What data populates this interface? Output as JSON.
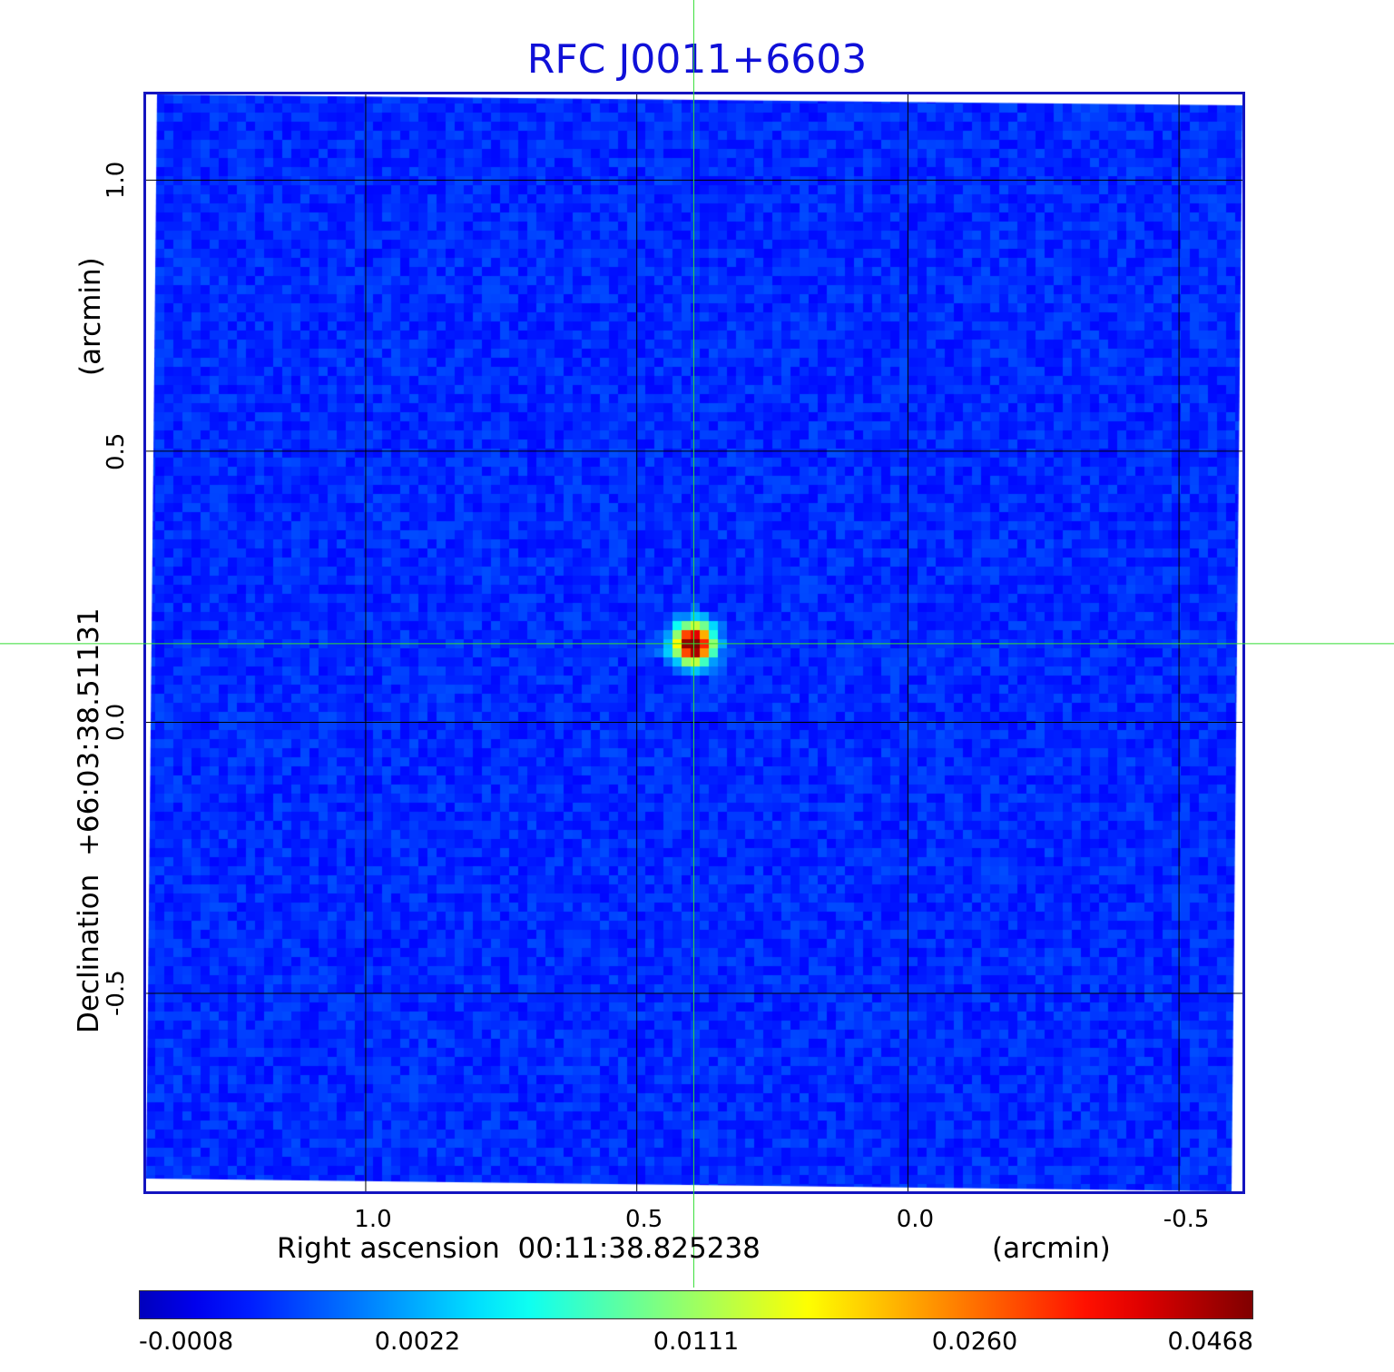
{
  "title": "RFC J0011+6603",
  "x_axis": {
    "label": "Right ascension  00:11:38.825238",
    "unit": "(arcmin)",
    "ticks": [
      "1.0",
      "0.5",
      "0.0",
      "-0.5"
    ],
    "tick_values": [
      1.0,
      0.5,
      0.0,
      -0.5
    ],
    "range": [
      1.405,
      -0.617
    ]
  },
  "y_axis": {
    "label": "Declination  +66:03:38.51131",
    "unit": "(arcmin)",
    "ticks": [
      "1.0",
      "0.5",
      "0.0",
      "-0.5"
    ],
    "tick_values": [
      1.0,
      0.5,
      0.0,
      -0.5
    ],
    "range": [
      -0.865,
      1.158
    ]
  },
  "crosshair": {
    "color": "#33dd33",
    "x_arcmin": 0.395,
    "y_arcmin": 0.145
  },
  "source": {
    "x_arcmin": 0.395,
    "y_arcmin": 0.145
  },
  "colorbar": {
    "colormap": "jet",
    "labels": [
      "-0.0008",
      "0.0022",
      "0.0111",
      "0.0260",
      "0.0468"
    ],
    "values": [
      -0.0008,
      0.0022,
      0.0111,
      0.026,
      0.0468
    ]
  },
  "colors": {
    "title": "#1010d8",
    "frame": "#1414c0",
    "background_map": "#1a55ee",
    "grid": "#000000"
  }
}
